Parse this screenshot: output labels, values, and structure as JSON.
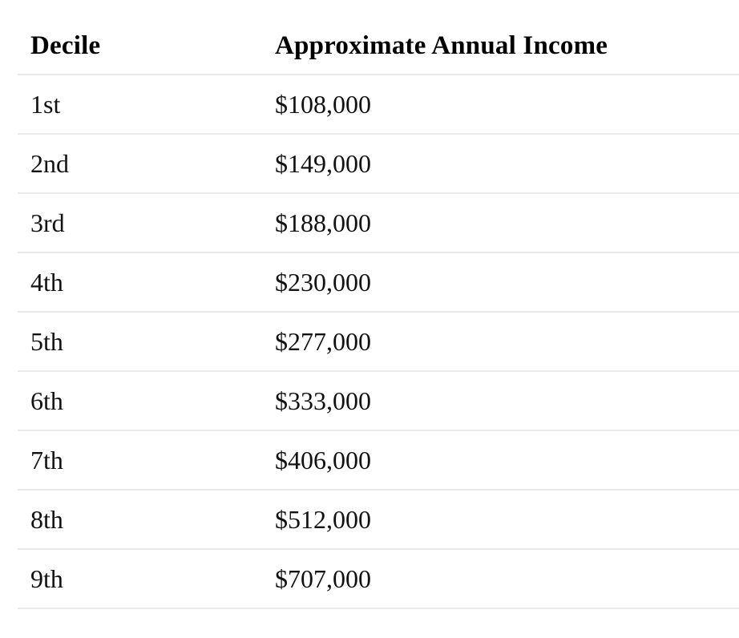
{
  "table": {
    "columns": [
      "Decile",
      "Approximate Annual Income"
    ],
    "rows": [
      {
        "decile": "1st",
        "income": "$108,000"
      },
      {
        "decile": "2nd",
        "income": "$149,000"
      },
      {
        "decile": "3rd",
        "income": "$188,000"
      },
      {
        "decile": "4th",
        "income": "$230,000"
      },
      {
        "decile": "5th",
        "income": "$277,000"
      },
      {
        "decile": "6th",
        "income": "$333,000"
      },
      {
        "decile": "7th",
        "income": "$406,000"
      },
      {
        "decile": "8th",
        "income": "$512,000"
      },
      {
        "decile": "9th",
        "income": "$707,000"
      }
    ]
  },
  "chart_data": {
    "type": "table",
    "title": "",
    "columns": [
      "Decile",
      "Approximate Annual Income"
    ],
    "categories": [
      "1st",
      "2nd",
      "3rd",
      "4th",
      "5th",
      "6th",
      "7th",
      "8th",
      "9th"
    ],
    "values": [
      108000,
      149000,
      188000,
      230000,
      277000,
      333000,
      406000,
      512000,
      707000
    ],
    "value_labels": [
      "$108,000",
      "$149,000",
      "$188,000",
      "$230,000",
      "$277,000",
      "$333,000",
      "$406,000",
      "$512,000",
      "$707,000"
    ]
  },
  "colors": {
    "background": "#ffffff",
    "divider": "#e9e9e9",
    "header_text": "#000000",
    "body_text": "#121212"
  }
}
